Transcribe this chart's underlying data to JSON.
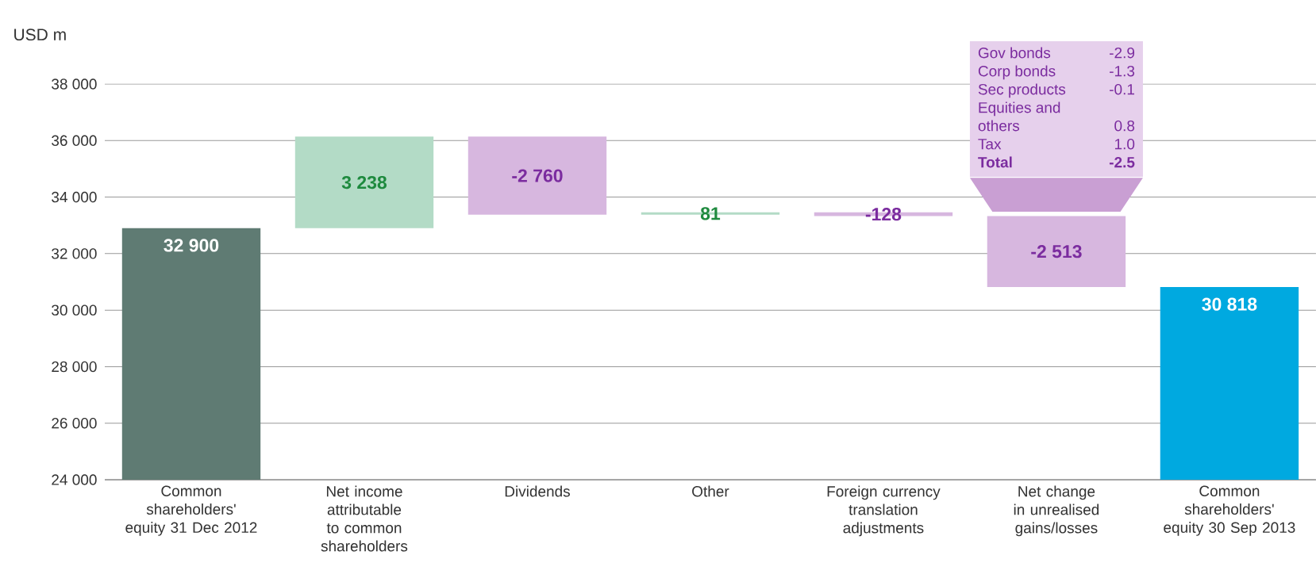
{
  "chart_data": {
    "type": "bar",
    "ylabel": "USD m",
    "categories": [
      "Common shareholders' equity 31 Dec 2012",
      "Net income attributable to common shareholders",
      "Dividends",
      "Other",
      "Foreign currency translation adjustments",
      "Net change in unrealised gains/losses",
      "Common shareholders' equity 30 Sep 2013"
    ],
    "values": [
      32900,
      3238,
      -2760,
      81,
      -128,
      -2513,
      30818
    ],
    "base": [
      null,
      32900,
      36138,
      33378,
      33459,
      33331,
      null
    ],
    "colors": [
      "#5f7b73",
      "#b3dbc6",
      "#d7b7df",
      "#b3dbc6",
      "#d7b7df",
      "#d7b7df",
      "#00a9e0"
    ],
    "value_labels": [
      "32 900",
      "3 238",
      "-2 760",
      "81",
      "-128",
      "-2 513",
      "30 818"
    ],
    "ylim": [
      24000,
      38000
    ],
    "yticks": [
      {
        "value": 24000,
        "label": "24 000"
      },
      {
        "value": 26000,
        "label": "26 000"
      },
      {
        "value": 28000,
        "label": "28 000"
      },
      {
        "value": 30000,
        "label": "30 000"
      },
      {
        "value": 32000,
        "label": "32 000"
      },
      {
        "value": 34000,
        "label": "34 000"
      },
      {
        "value": 36000,
        "label": "36 000"
      },
      {
        "value": 38000,
        "label": "38 000"
      }
    ],
    "grid": "y",
    "annotations": [
      "Gov bonds",
      "-2.9",
      "Corp bonds",
      "-1.3",
      "Sec products",
      "-0.1",
      "Equities and others",
      "0.8",
      "Tax",
      "1.0",
      "**Total**",
      "**-2.5**"
    ]
  }
}
